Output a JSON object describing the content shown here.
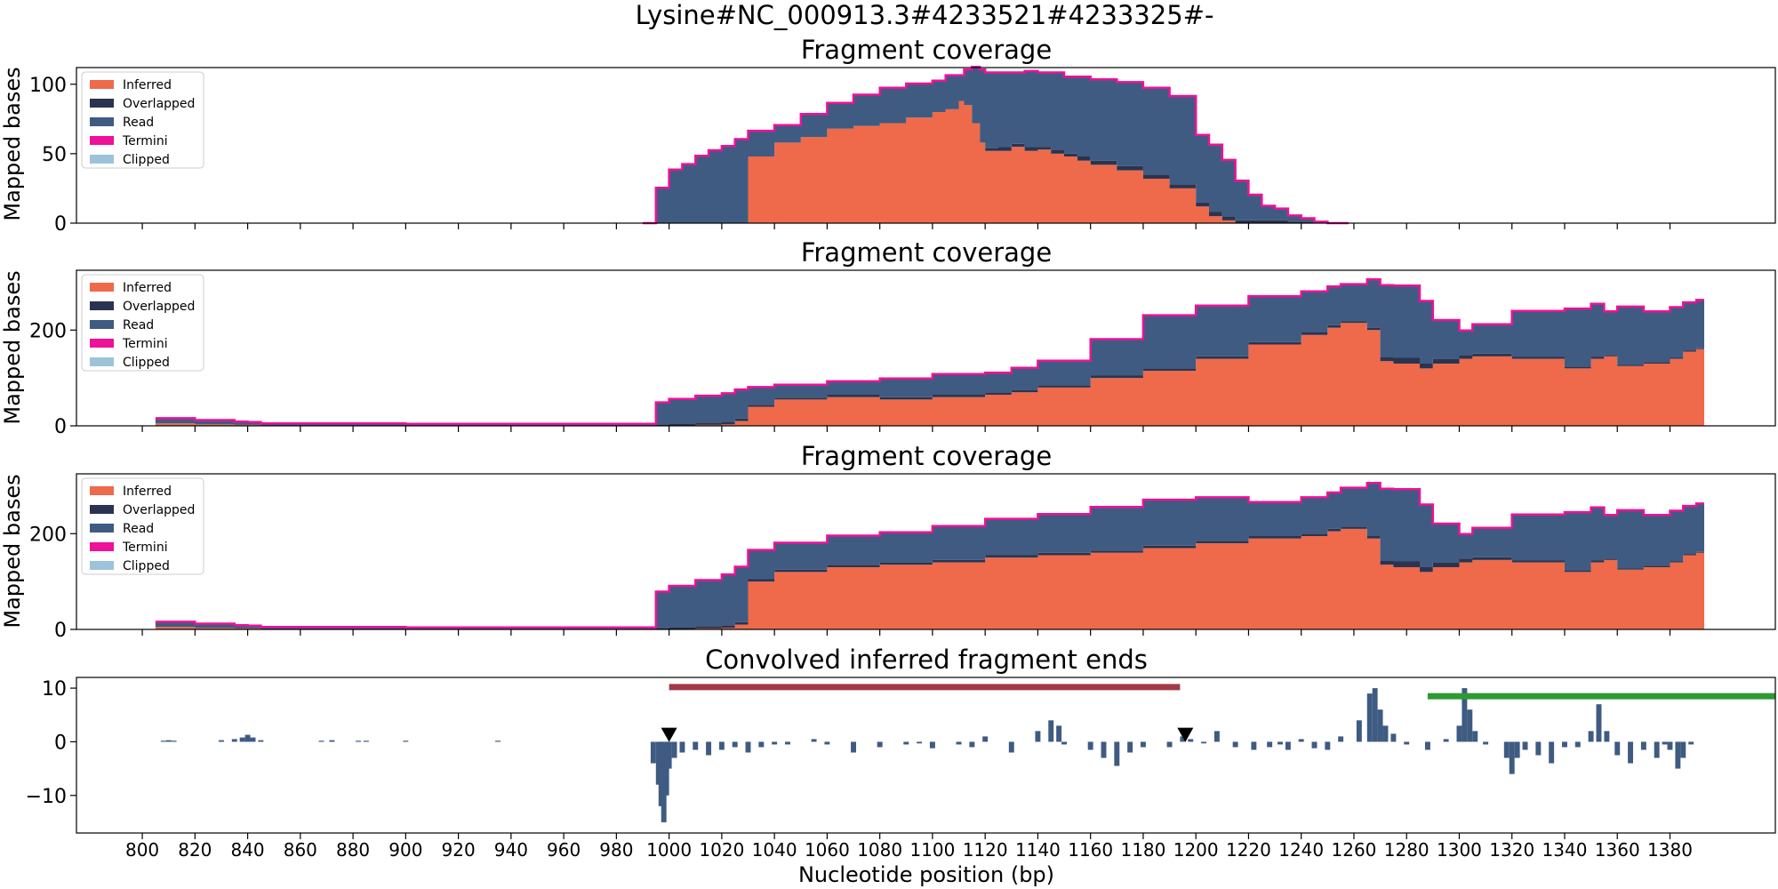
{
  "figure": {
    "suptitle": "Lysine#NC_000913.3#4233521#4233325#-",
    "xlabel": "Nucleotide position (bp)",
    "x_ticks": [
      800,
      820,
      840,
      860,
      880,
      900,
      920,
      940,
      960,
      980,
      1000,
      1020,
      1040,
      1060,
      1080,
      1100,
      1120,
      1140,
      1160,
      1180,
      1200,
      1220,
      1240,
      1260,
      1280,
      1300,
      1320,
      1340,
      1360,
      1380
    ],
    "xlim": [
      775,
      1420
    ]
  },
  "legend": {
    "entries": [
      {
        "label": "Inferred",
        "color": "#ee6a4b"
      },
      {
        "label": "Overlapped",
        "color": "#2a3450"
      },
      {
        "label": "Read",
        "color": "#3f5b82"
      },
      {
        "label": "Termini",
        "color": "#ee1199"
      },
      {
        "label": "Clipped",
        "color": "#9dc3d9"
      }
    ]
  },
  "colors": {
    "inferred": "#ee6a4b",
    "overlapped": "#2a3450",
    "read": "#3f5b82",
    "termini": "#ee1199",
    "annotation_red": "#a23a48",
    "annotation_green": "#2e9a35",
    "marker": "#000000"
  },
  "chart_data": [
    {
      "type": "area",
      "title": "Fragment coverage",
      "ylabel": "Mapped bases",
      "ylim": [
        0,
        112
      ],
      "yticks": [
        0,
        50,
        100
      ],
      "x": [
        990,
        995,
        1000,
        1005,
        1010,
        1015,
        1020,
        1025,
        1030,
        1040,
        1050,
        1060,
        1070,
        1080,
        1090,
        1100,
        1105,
        1110,
        1112,
        1115,
        1118,
        1120,
        1125,
        1130,
        1135,
        1140,
        1145,
        1150,
        1155,
        1160,
        1170,
        1180,
        1190,
        1200,
        1205,
        1210,
        1215,
        1220,
        1225,
        1230,
        1235,
        1240,
        1245,
        1250,
        1255
      ],
      "series": [
        {
          "name": "Inferred",
          "values": [
            0,
            0,
            0,
            0,
            0,
            0,
            0,
            0,
            48,
            58,
            62,
            68,
            70,
            72,
            76,
            80,
            82,
            88,
            85,
            72,
            58,
            52,
            52,
            55,
            52,
            53,
            50,
            48,
            45,
            42,
            38,
            32,
            25,
            12,
            5,
            2,
            0,
            0,
            0,
            0,
            0,
            0,
            0,
            0,
            0
          ]
        },
        {
          "name": "Overlapped",
          "values": [
            0,
            0,
            0,
            0,
            0,
            0,
            0,
            0,
            0,
            0,
            0,
            0,
            0,
            0,
            0,
            0,
            0,
            0,
            0,
            0,
            0,
            2,
            3,
            2,
            3,
            2,
            3,
            2,
            3,
            3,
            3,
            3,
            3,
            3,
            3,
            3,
            2,
            2,
            2,
            2,
            1,
            1,
            0,
            0,
            0
          ]
        },
        {
          "name": "Read",
          "values": [
            0,
            25,
            38,
            42,
            48,
            52,
            55,
            60,
            18,
            12,
            16,
            18,
            22,
            25,
            24,
            22,
            24,
            18,
            25,
            40,
            52,
            54,
            53,
            51,
            54,
            53,
            55,
            55,
            57,
            58,
            60,
            62,
            63,
            48,
            48,
            40,
            28,
            18,
            10,
            8,
            4,
            2,
            1,
            0,
            0
          ]
        },
        {
          "name": "Termini",
          "values": [
            0,
            0.5,
            0.5,
            0.5,
            0.5,
            0.5,
            0.5,
            0.5,
            0.5,
            0.5,
            0.5,
            0.5,
            0.5,
            0.5,
            0.5,
            0.5,
            0.5,
            0.5,
            0.5,
            0.5,
            0.5,
            0.5,
            0.5,
            0.5,
            0.5,
            0.5,
            0.5,
            0.5,
            0.5,
            0.5,
            0.5,
            0.5,
            0.5,
            0.5,
            0.5,
            0.5,
            0.5,
            0.5,
            0.5,
            0.5,
            0.5,
            0.5,
            0,
            0,
            0
          ]
        }
      ]
    },
    {
      "type": "area",
      "title": "Fragment coverage",
      "ylabel": "Mapped bases",
      "ylim": [
        0,
        325
      ],
      "yticks": [
        0,
        200
      ],
      "x": [
        805,
        812,
        820,
        835,
        840,
        845,
        860,
        900,
        960,
        990,
        995,
        1000,
        1010,
        1020,
        1025,
        1030,
        1040,
        1060,
        1080,
        1100,
        1120,
        1130,
        1140,
        1160,
        1180,
        1200,
        1220,
        1240,
        1250,
        1255,
        1265,
        1270,
        1275,
        1285,
        1290,
        1300,
        1305,
        1320,
        1340,
        1350,
        1355,
        1360,
        1370,
        1380,
        1385,
        1390
      ],
      "series": [
        {
          "name": "Inferred",
          "values": [
            5,
            5,
            3,
            2,
            2,
            1,
            1,
            1,
            1,
            1,
            1,
            1,
            2,
            3,
            10,
            40,
            55,
            60,
            55,
            60,
            65,
            70,
            80,
            100,
            115,
            140,
            170,
            190,
            205,
            215,
            200,
            135,
            130,
            120,
            130,
            140,
            145,
            140,
            120,
            140,
            145,
            125,
            130,
            140,
            155,
            160
          ]
        },
        {
          "name": "Overlapped",
          "values": [
            0,
            0,
            0,
            0,
            0,
            0,
            0,
            0,
            0,
            0,
            2,
            4,
            5,
            6,
            5,
            4,
            4,
            5,
            5,
            5,
            5,
            5,
            5,
            5,
            5,
            5,
            5,
            5,
            5,
            4,
            5,
            8,
            12,
            10,
            10,
            8,
            6,
            4,
            4,
            4,
            3,
            3,
            3,
            2,
            2,
            2
          ]
        },
        {
          "name": "Read",
          "values": [
            10,
            10,
            8,
            6,
            5,
            3,
            3,
            2,
            2,
            2,
            45,
            50,
            55,
            58,
            60,
            36,
            26,
            27,
            38,
            42,
            40,
            45,
            50,
            75,
            110,
            105,
            95,
            85,
            80,
            76,
            100,
            150,
            150,
            130,
            80,
            50,
            60,
            95,
            120,
            110,
            90,
            120,
            105,
            105,
            100,
            100
          ]
        },
        {
          "name": "Termini",
          "values": [
            1,
            1,
            1,
            1,
            1,
            1,
            1,
            1,
            1,
            1,
            1,
            1,
            1,
            1,
            1,
            1,
            1,
            1,
            1,
            1,
            1,
            1,
            1,
            1,
            1,
            1,
            1,
            1,
            1,
            1,
            1,
            1,
            1,
            1,
            1,
            1,
            1,
            1,
            1,
            1,
            1,
            1,
            1,
            1,
            1,
            1
          ]
        }
      ]
    },
    {
      "type": "area",
      "title": "Fragment coverage",
      "ylabel": "Mapped bases",
      "ylim": [
        0,
        325
      ],
      "yticks": [
        0,
        200
      ],
      "x": [
        805,
        812,
        820,
        835,
        840,
        845,
        860,
        900,
        960,
        990,
        995,
        1000,
        1010,
        1020,
        1025,
        1030,
        1040,
        1060,
        1080,
        1100,
        1120,
        1140,
        1160,
        1180,
        1200,
        1220,
        1240,
        1250,
        1255,
        1265,
        1270,
        1275,
        1285,
        1290,
        1300,
        1305,
        1320,
        1340,
        1350,
        1355,
        1360,
        1370,
        1380,
        1385,
        1390
      ],
      "series": [
        {
          "name": "Inferred",
          "values": [
            5,
            5,
            3,
            2,
            2,
            1,
            1,
            1,
            1,
            1,
            1,
            1,
            2,
            3,
            10,
            100,
            120,
            130,
            135,
            140,
            150,
            155,
            160,
            170,
            180,
            190,
            195,
            205,
            210,
            190,
            135,
            130,
            120,
            130,
            140,
            145,
            140,
            120,
            140,
            145,
            125,
            130,
            140,
            155,
            160
          ]
        },
        {
          "name": "Overlapped",
          "values": [
            0,
            0,
            0,
            0,
            0,
            0,
            0,
            0,
            0,
            0,
            2,
            4,
            5,
            6,
            5,
            5,
            5,
            5,
            5,
            5,
            5,
            5,
            5,
            5,
            5,
            5,
            5,
            5,
            5,
            5,
            8,
            12,
            10,
            10,
            8,
            6,
            4,
            4,
            4,
            3,
            3,
            3,
            2,
            2,
            2
          ]
        },
        {
          "name": "Read",
          "values": [
            10,
            10,
            8,
            6,
            5,
            3,
            3,
            2,
            2,
            2,
            75,
            85,
            95,
            105,
            115,
            60,
            55,
            60,
            62,
            70,
            75,
            80,
            90,
            95,
            90,
            70,
            75,
            75,
            80,
            110,
            150,
            150,
            130,
            80,
            50,
            60,
            95,
            120,
            110,
            90,
            120,
            105,
            105,
            100,
            100
          ]
        },
        {
          "name": "Termini",
          "values": [
            1,
            1,
            1,
            1,
            1,
            1,
            1,
            1,
            1,
            1,
            1,
            1,
            1,
            1,
            1,
            1,
            1,
            1,
            1,
            1,
            1,
            1,
            1,
            1,
            1,
            1,
            1,
            1,
            1,
            1,
            1,
            1,
            1,
            1,
            1,
            1,
            1,
            1,
            1,
            1,
            1,
            1,
            1,
            1,
            1
          ]
        }
      ]
    },
    {
      "type": "bar",
      "title": "Convolved inferred fragment ends",
      "ylabel": "",
      "ylim": [
        -17,
        12
      ],
      "yticks": [
        -10,
        0,
        10
      ],
      "x": [
        808,
        810,
        812,
        830,
        835,
        838,
        840,
        842,
        845,
        868,
        872,
        882,
        885,
        900,
        935,
        994,
        996,
        997,
        998,
        999,
        1000,
        1002,
        1005,
        1010,
        1015,
        1020,
        1025,
        1030,
        1035,
        1040,
        1045,
        1055,
        1060,
        1070,
        1080,
        1090,
        1095,
        1100,
        1110,
        1115,
        1120,
        1130,
        1140,
        1145,
        1148,
        1150,
        1160,
        1165,
        1170,
        1175,
        1180,
        1190,
        1195,
        1198,
        1203,
        1208,
        1215,
        1222,
        1228,
        1232,
        1235,
        1240,
        1245,
        1250,
        1255,
        1262,
        1266,
        1268,
        1270,
        1272,
        1275,
        1280,
        1288,
        1295,
        1300,
        1302,
        1304,
        1306,
        1310,
        1318,
        1320,
        1322,
        1325,
        1330,
        1335,
        1340,
        1345,
        1350,
        1353,
        1356,
        1360,
        1365,
        1370,
        1375,
        1378,
        1380,
        1383,
        1385,
        1388
      ],
      "values": [
        0.2,
        0.3,
        0.2,
        0.3,
        0.5,
        0.8,
        1.3,
        0.8,
        0.3,
        0.2,
        0.3,
        0.2,
        0.2,
        0.2,
        0.2,
        -4,
        -8,
        -12,
        -15,
        -10,
        -5,
        -3,
        -2,
        -1.5,
        -2.5,
        -1.5,
        -1,
        -2,
        -1,
        -0.5,
        -0.5,
        0.5,
        -0.5,
        -2,
        -1,
        -0.5,
        -0.3,
        -1.2,
        -0.5,
        -1,
        1,
        -2,
        2,
        4,
        3,
        -0.5,
        -1.5,
        -3,
        -4.5,
        -2,
        -1,
        -1,
        1,
        0.5,
        -0.3,
        2,
        -1,
        -1.5,
        -1,
        -0.5,
        -1.5,
        0.5,
        -1.2,
        -1.5,
        1,
        4,
        9,
        10,
        6,
        3,
        1.5,
        -0.5,
        -1.5,
        0.5,
        3,
        10,
        6,
        2,
        -0.5,
        -3,
        -6,
        -3,
        -1.5,
        -2.5,
        -4,
        -1,
        -1,
        2,
        7,
        2,
        -2.5,
        -4,
        -1.5,
        -3,
        -0.5,
        -1.5,
        -5,
        -3,
        -0.5
      ]
    }
  ],
  "annotations": {
    "red_bar": {
      "x_start": 1000,
      "x_end": 1194,
      "y": 10.2
    },
    "green_bar": {
      "x_start": 1288,
      "x_end": 1420,
      "y": 8.5
    },
    "markers_x": [
      1000,
      1196
    ],
    "marker_y": 1.3
  }
}
